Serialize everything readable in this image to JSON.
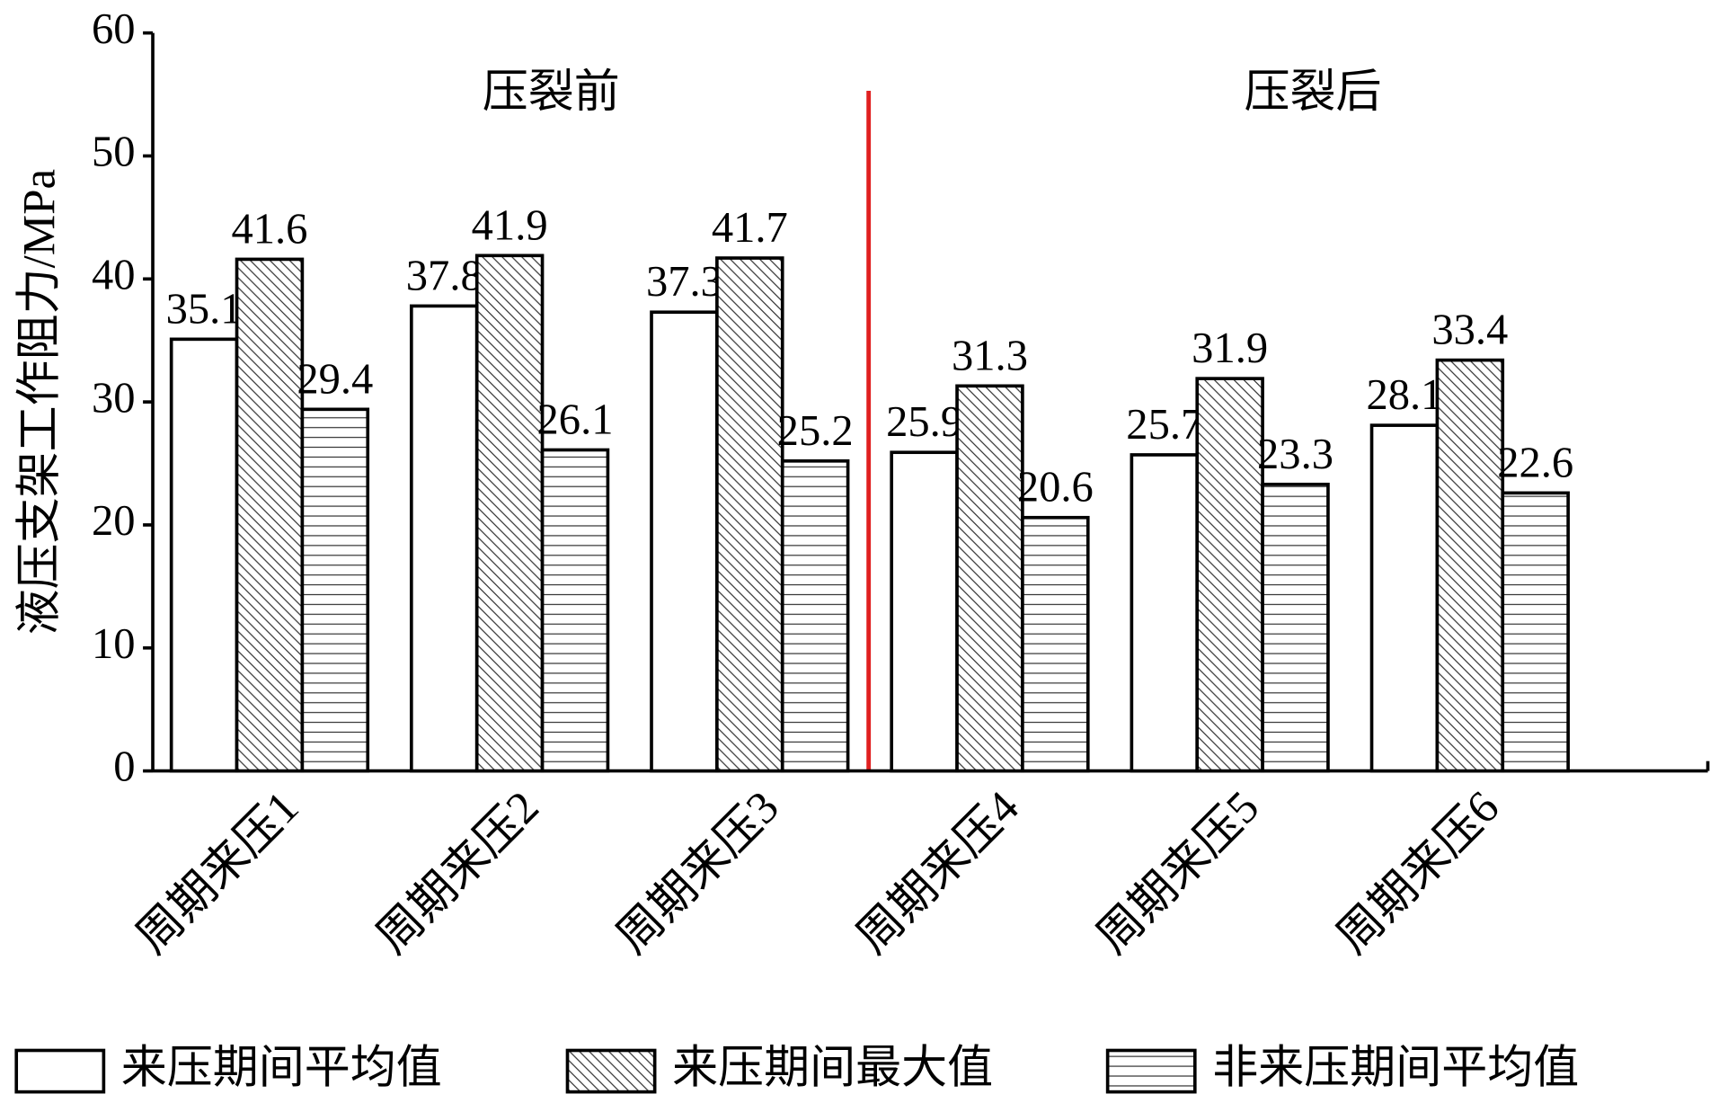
{
  "chart_data": {
    "type": "bar",
    "y_label": "液压支架工作阻力/MPa",
    "annotations": [
      "压裂前",
      "压裂后"
    ],
    "categories": [
      "周期来压1",
      "周期来压2",
      "周期来压3",
      "周期来压4",
      "周期来压5",
      "周期来压6"
    ],
    "series": [
      {
        "name": "来压期间平均值",
        "color": "#000000",
        "hatch": "none",
        "values": [
          35.1,
          37.8,
          37.3,
          25.9,
          25.7,
          28.1
        ]
      },
      {
        "name": "来压期间最大值",
        "color": "#000000",
        "hatch": "diagonal",
        "values": [
          41.6,
          41.9,
          41.7,
          31.3,
          31.9,
          33.4
        ]
      },
      {
        "name": "非来压期间平均值",
        "color": "#000000",
        "hatch": "horizontal",
        "values": [
          29.4,
          26.1,
          25.2,
          20.6,
          23.3,
          22.6
        ]
      }
    ],
    "ylim": [
      0,
      60
    ],
    "yticks": [
      0,
      10,
      20,
      30,
      40,
      50,
      60
    ],
    "divider_color": "#e02020"
  }
}
